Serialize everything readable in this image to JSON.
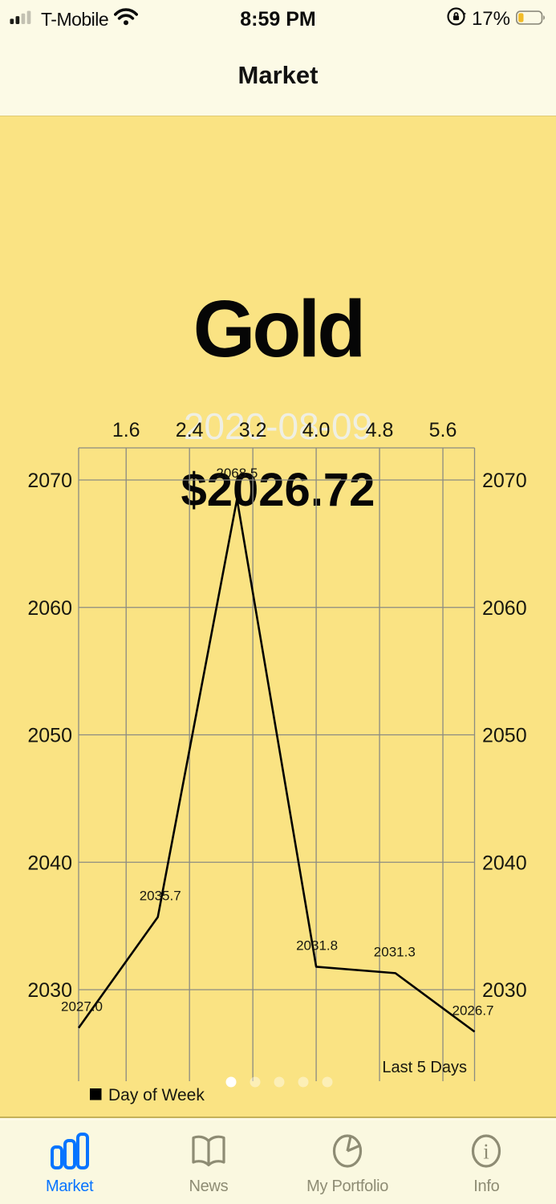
{
  "status_bar": {
    "carrier": "T-Mobile",
    "time": "8:59 PM",
    "battery_percent": "17%",
    "battery_fill_color": "#F2BC28",
    "icons": [
      "signal-icon",
      "wifi-icon",
      "rotation-lock-icon",
      "battery-icon"
    ]
  },
  "header": {
    "title": "Market"
  },
  "market_card": {
    "asset_name": "Gold",
    "date": "2020-08-09",
    "price": "$2026.72",
    "page_dots": {
      "count": 5,
      "active_index": 0
    }
  },
  "chart_data": {
    "type": "line",
    "x": [
      1,
      2,
      3,
      4,
      5,
      6
    ],
    "values": [
      2027.0,
      2035.7,
      2068.5,
      2031.8,
      2031.3,
      2026.7
    ],
    "point_labels": [
      "2027.0",
      "2035.7",
      "2068.5",
      "2031.8",
      "2031.3",
      "2026.7"
    ],
    "x_tick_labels": [
      "1.6",
      "2.4",
      "3.2",
      "4.0",
      "4.8",
      "5.6"
    ],
    "x_ticks": [
      1.6,
      2.4,
      3.2,
      4.0,
      4.8,
      5.6
    ],
    "y_ticks": [
      2070,
      2060,
      2050,
      2040,
      2030
    ],
    "xlim": [
      1.0,
      6.0
    ],
    "x_axis_position": "top",
    "y_axis_sides": "both",
    "grid": true,
    "line_color": "#000000",
    "grid_color": "#8B8B82",
    "annotation": "Last 5 Days",
    "legend": {
      "label": "Day of Week",
      "marker_color": "#000000"
    }
  },
  "tab_bar": {
    "active_color": "#0774FF",
    "inactive_color": "#8E8C74",
    "items": [
      {
        "label": "Market",
        "icon": "bar-chart-icon",
        "active": true
      },
      {
        "label": "News",
        "icon": "book-icon",
        "active": false
      },
      {
        "label": "My Portfolio",
        "icon": "pie-chart-icon",
        "active": false
      },
      {
        "label": "Info",
        "icon": "info-icon",
        "active": false
      }
    ]
  },
  "colors": {
    "card_background": "#FAE383",
    "top_background": "#FCFAE6",
    "tabbar_background": "#FAF8E0",
    "date_text": "#EFEFE3"
  }
}
